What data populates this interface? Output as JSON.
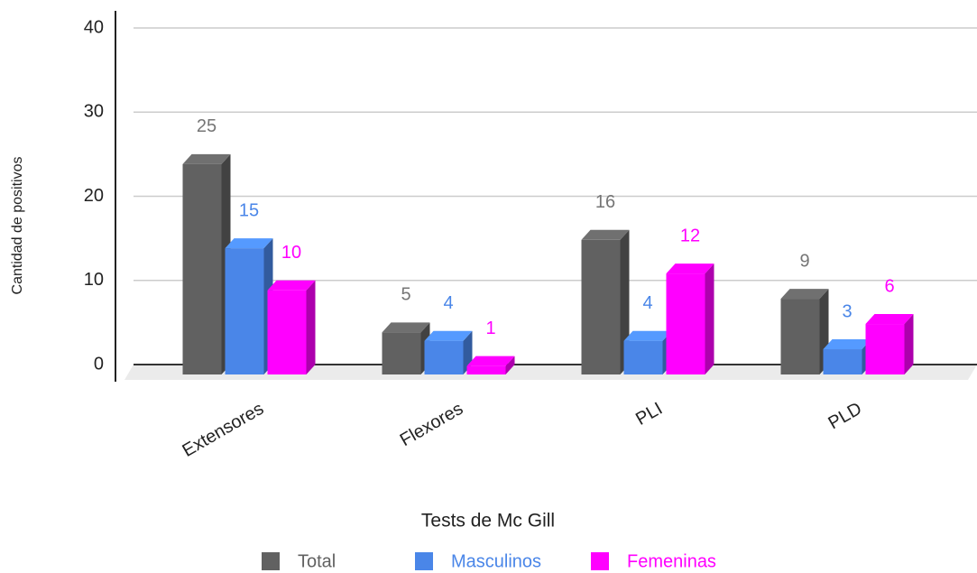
{
  "chart_data": {
    "type": "bar3d",
    "x_label": "Tests de Mc Gill",
    "y_label": "Cantidad de positivos",
    "categories": [
      "Extensores",
      "Flexores",
      "PLI",
      "PLD"
    ],
    "series": [
      {
        "name": "Total",
        "color": "#616161",
        "values": [
          25,
          5,
          16,
          9
        ]
      },
      {
        "name": "Masculinos",
        "color": "#4a86e8",
        "values": [
          15,
          4,
          4,
          3
        ]
      },
      {
        "name": "Femeninas",
        "color": "#ff00ff",
        "values": [
          10,
          1,
          12,
          6
        ]
      }
    ],
    "ylim": [
      0,
      40
    ],
    "yticks": [
      0,
      10,
      20,
      30,
      40
    ],
    "grid": true,
    "legend": "bottom"
  }
}
